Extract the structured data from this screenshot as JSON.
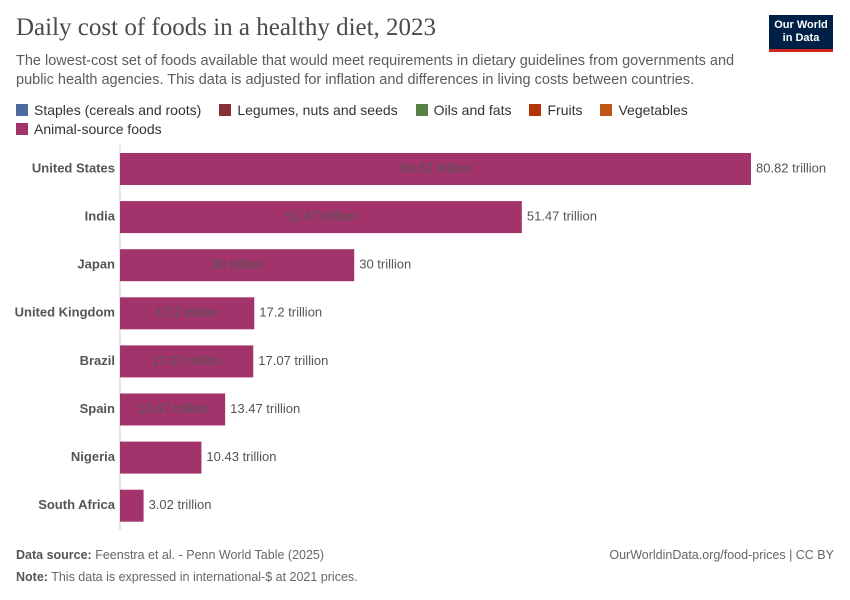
{
  "chart_data": {
    "type": "stacked-bar",
    "orientation": "horizontal",
    "title": "Daily cost of foods in a healthy diet, 2023",
    "subtitle": "The lowest-cost set of foods available that would meet requirements in dietary guidelines from governments and public health agencies. This data is adjusted for inflation and differences in living costs between countries.",
    "logo": [
      "Our World",
      "in Data"
    ],
    "categories": [
      "United States",
      "India",
      "Japan",
      "United Kingdom",
      "Brazil",
      "Spain",
      "Nigeria",
      "South Africa"
    ],
    "series": [
      {
        "name": "Staples (cereals and roots)",
        "color": "#4c6a9c",
        "values": [
          null,
          null,
          null,
          null,
          null,
          null,
          null,
          null
        ]
      },
      {
        "name": "Legumes, nuts and seeds",
        "color": "#883039",
        "values": [
          null,
          null,
          null,
          null,
          null,
          null,
          null,
          null
        ]
      },
      {
        "name": "Oils and fats",
        "color": "#578145",
        "values": [
          null,
          null,
          null,
          null,
          null,
          null,
          null,
          null
        ]
      },
      {
        "name": "Fruits",
        "color": "#b13507",
        "values": [
          null,
          null,
          null,
          null,
          null,
          null,
          null,
          null
        ]
      },
      {
        "name": "Vegetables",
        "color": "#c05917",
        "values": [
          null,
          null,
          null,
          null,
          null,
          null,
          null,
          null
        ]
      },
      {
        "name": "Animal-source foods",
        "color": "#a2336b",
        "values": [
          80.82,
          51.47,
          30,
          17.2,
          17.07,
          13.47,
          10.43,
          3.02
        ],
        "value_labels": [
          "80.82 trillion",
          "51.47 trillion",
          "30 trillion",
          "17.2 trillion",
          "17.07 trillion",
          "13.47 trillion",
          "10.43 trillion",
          "3.02 trillion"
        ]
      }
    ],
    "source_label": "Data source:",
    "source": "Feenstra et al. - Penn World Table (2025)",
    "url": "OurWorldinData.org/food-prices | CC BY",
    "note_label": "Note:",
    "note": "This data is expressed in international-$ at 2021 prices."
  }
}
